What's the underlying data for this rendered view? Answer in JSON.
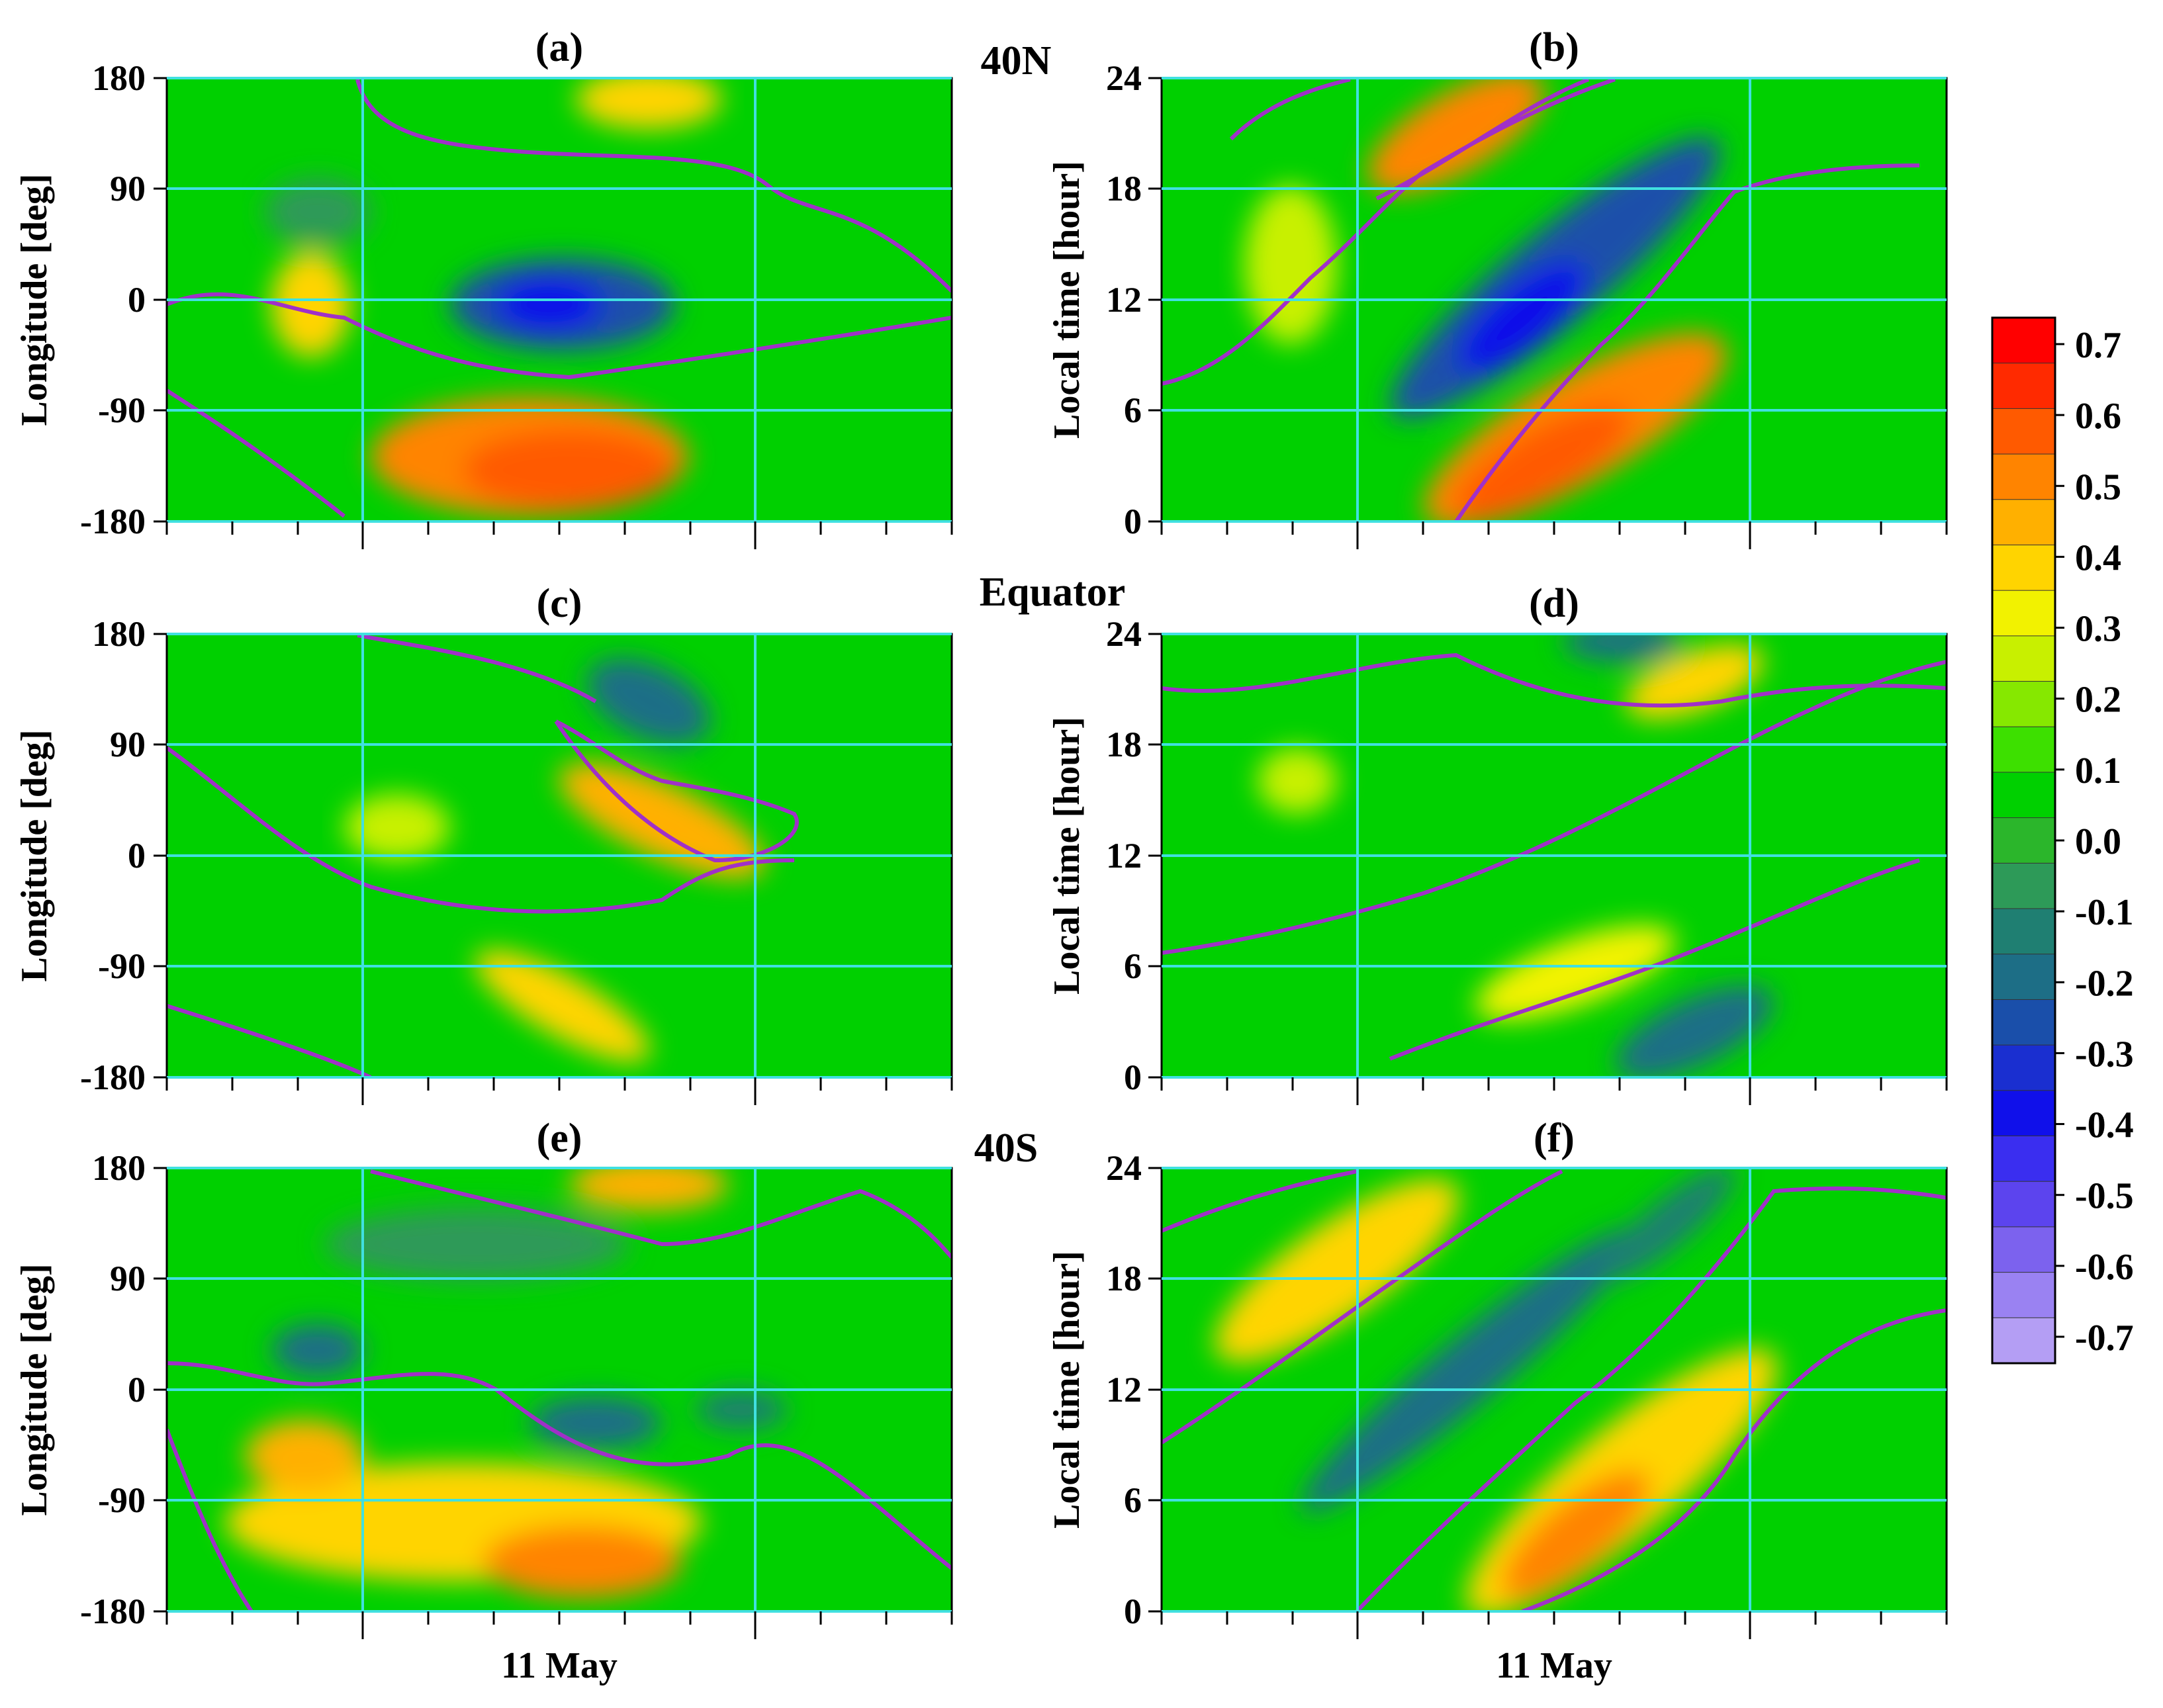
{
  "chart_data": {
    "type": "heatmap",
    "panels": [
      {
        "id": "a",
        "label": "(a)",
        "region_label": "40N",
        "ylabel": "Longitude [deg]",
        "yticks": [
          "180",
          "90",
          "0",
          "-90",
          "-180"
        ],
        "ylim": [
          -180,
          180
        ],
        "xlabel": ""
      },
      {
        "id": "b",
        "label": "(b)",
        "region_label": "",
        "ylabel": "Local time [hour]",
        "yticks": [
          "24",
          "18",
          "12",
          "6",
          "0"
        ],
        "ylim": [
          0,
          24
        ],
        "xlabel": ""
      },
      {
        "id": "c",
        "label": "(c)",
        "region_label": "Equator",
        "ylabel": "Longitude [deg]",
        "yticks": [
          "180",
          "90",
          "0",
          "-90",
          "-180"
        ],
        "ylim": [
          -180,
          180
        ],
        "xlabel": ""
      },
      {
        "id": "d",
        "label": "(d)",
        "region_label": "",
        "ylabel": "Local time [hour]",
        "yticks": [
          "24",
          "18",
          "12",
          "6",
          "0"
        ],
        "ylim": [
          0,
          24
        ],
        "xlabel": ""
      },
      {
        "id": "e",
        "label": "(e)",
        "region_label": "40S",
        "ylabel": "Longitude [deg]",
        "yticks": [
          "180",
          "90",
          "0",
          "-90",
          "-180"
        ],
        "ylim": [
          -180,
          180
        ],
        "xlabel": "11 May"
      },
      {
        "id": "f",
        "label": "(f)",
        "region_label": "",
        "ylabel": "Local time [hour]",
        "yticks": [
          "24",
          "18",
          "12",
          "6",
          "0"
        ],
        "ylim": [
          0,
          24
        ],
        "xlabel": "11 May"
      }
    ],
    "colorbar": {
      "ticks": [
        "0.7",
        "0.6",
        "0.5",
        "0.4",
        "0.3",
        "0.2",
        "0.1",
        "0.0",
        "-0.1",
        "-0.2",
        "-0.3",
        "-0.4",
        "-0.5",
        "-0.6",
        "-0.7"
      ],
      "range": [
        -0.7,
        0.7
      ],
      "colors": [
        "#ff0000",
        "#ff2a00",
        "#ff5a00",
        "#ff8400",
        "#ffb000",
        "#ffd400",
        "#f2f200",
        "#c8f000",
        "#86e800",
        "#3de000",
        "#00d000",
        "#2bb62b",
        "#2d9a58",
        "#1f7f72",
        "#1d6e86",
        "#1a4faa",
        "#1a2fd0",
        "#1010ea",
        "#3a2ef0",
        "#5c44ee",
        "#7c62ee",
        "#9a82f2",
        "#b49ef4"
      ]
    },
    "contour_color": "#a030c8",
    "grid_color": "#40e0e0"
  }
}
